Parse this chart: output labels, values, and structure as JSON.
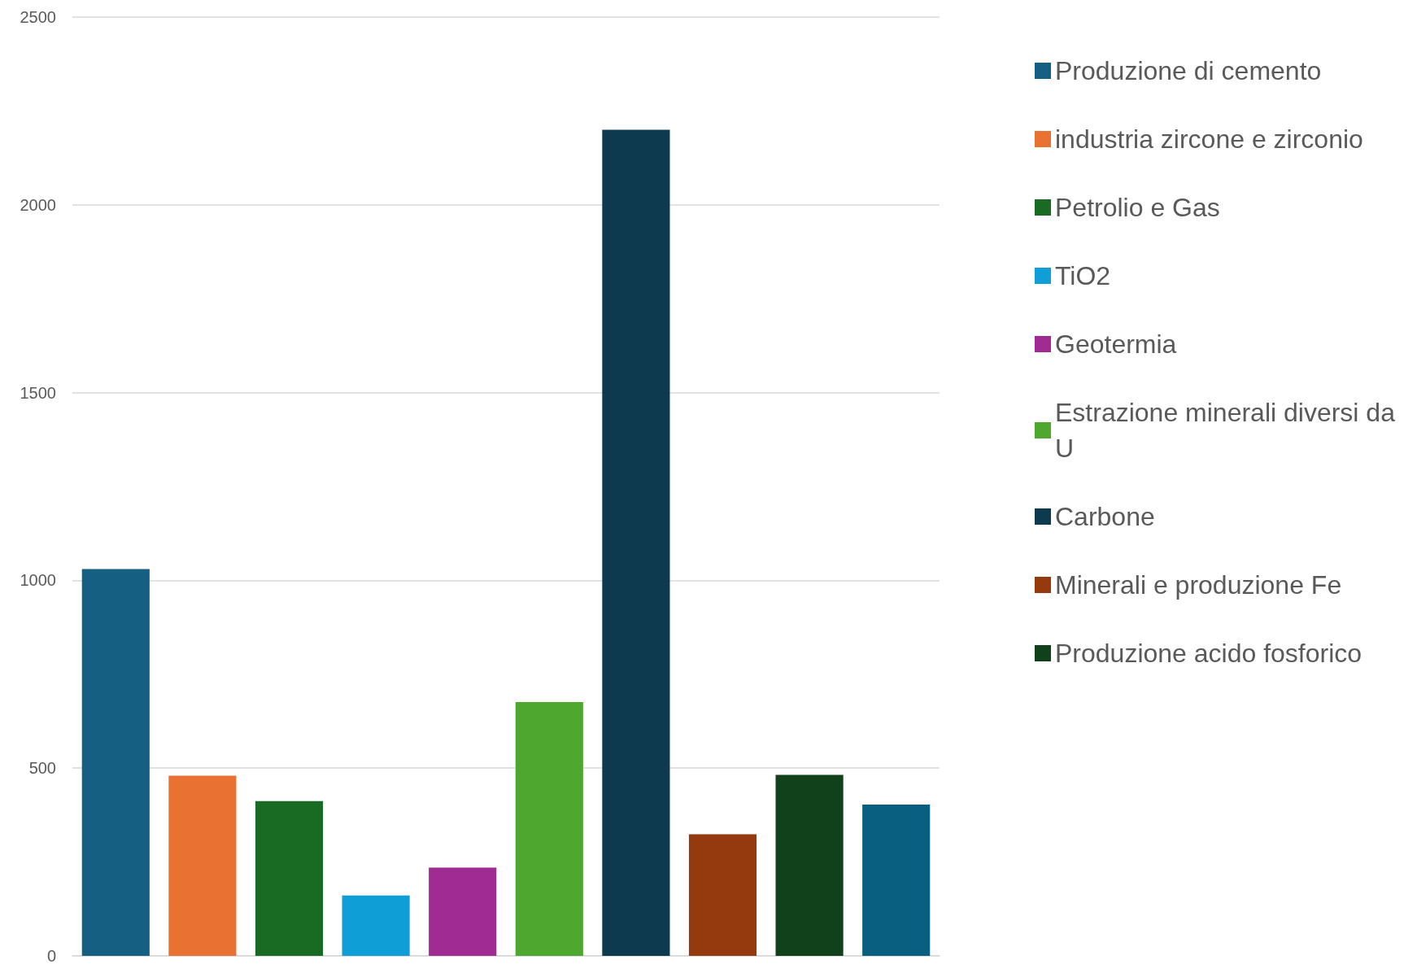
{
  "chart_data": {
    "type": "bar",
    "categories": [
      null,
      null,
      null,
      null,
      null,
      null,
      null,
      null,
      null,
      null
    ],
    "series": [
      {
        "name": "Produzione di cemento",
        "color": "#156082",
        "values": [
          1030,
          null,
          null,
          null,
          null,
          null,
          null,
          null,
          null,
          null
        ]
      },
      {
        "name": "industria zircone e zirconio",
        "color": "#e97132",
        "values": [
          null,
          480,
          null,
          null,
          null,
          null,
          null,
          null,
          null,
          null
        ]
      },
      {
        "name": "Petrolio e Gas",
        "color": "#196b24",
        "values": [
          null,
          null,
          412,
          null,
          null,
          null,
          null,
          null,
          null,
          null
        ]
      },
      {
        "name": "TiO2",
        "color": "#0f9ed5",
        "values": [
          null,
          null,
          null,
          161,
          null,
          null,
          null,
          null,
          null,
          null
        ]
      },
      {
        "name": "Geotermia",
        "color": "#a02b93",
        "values": [
          null,
          null,
          null,
          null,
          235,
          null,
          null,
          null,
          null,
          null
        ]
      },
      {
        "name": "Estrazione minerali diversi da U",
        "color": "#4ea72e",
        "values": [
          null,
          null,
          null,
          null,
          null,
          676,
          null,
          null,
          null,
          null
        ]
      },
      {
        "name": "Carbone",
        "color": "#0e3a4f",
        "values": [
          null,
          null,
          null,
          null,
          null,
          null,
          2200,
          null,
          null,
          null
        ]
      },
      {
        "name": "Minerali e produzione Fe",
        "color": "#953a0f",
        "values": [
          null,
          null,
          null,
          null,
          null,
          null,
          null,
          324,
          null,
          null
        ]
      },
      {
        "name": "Produzione acido fosforico",
        "color": "#10411a",
        "values": [
          null,
          null,
          null,
          null,
          null,
          null,
          null,
          null,
          482,
          null
        ]
      },
      {
        "color": "#095f7f",
        "values": [
          null,
          null,
          null,
          null,
          null,
          null,
          null,
          null,
          null,
          403
        ]
      }
    ],
    "ylim": [
      0,
      2500
    ],
    "yticks": [
      0,
      500,
      1000,
      1500,
      2000,
      2500
    ],
    "grid": "y",
    "legend": "right"
  }
}
